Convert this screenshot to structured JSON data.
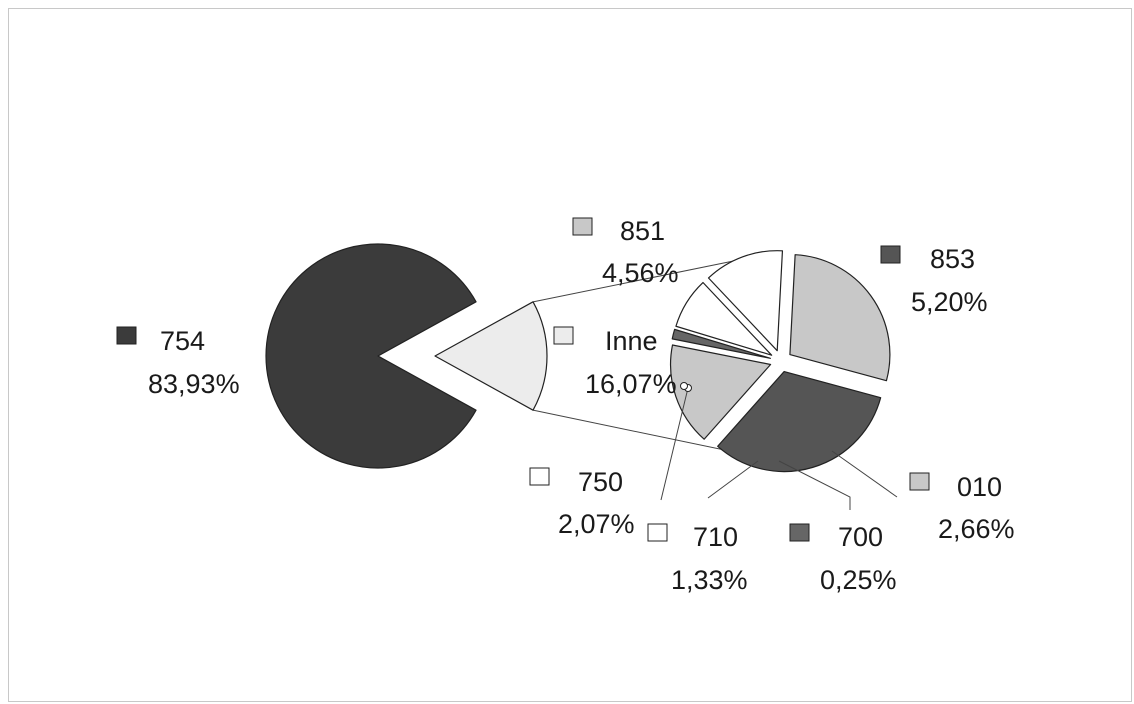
{
  "chart_data": {
    "type": "pie",
    "subtype": "pie-of-pie",
    "main_pie": [
      {
        "label": "754",
        "value": 83.93,
        "percent_text": "83,93%",
        "color": "#3b3b3b"
      },
      {
        "label": "Inne",
        "value": 16.07,
        "percent_text": "16,07%",
        "color": "#ececec"
      }
    ],
    "secondary_pie": [
      {
        "label": "851",
        "value": 4.56,
        "percent_text": "4,56%",
        "color": "#c8c8c8"
      },
      {
        "label": "853",
        "value": 5.2,
        "percent_text": "5,20%",
        "color": "#555555"
      },
      {
        "label": "010",
        "value": 2.66,
        "percent_text": "2,66%",
        "color": "#c8c8c8"
      },
      {
        "label": "700",
        "value": 0.25,
        "percent_text": "0,25%",
        "color": "#666666"
      },
      {
        "label": "710",
        "value": 1.33,
        "percent_text": "1,33%",
        "color": "#ffffff"
      },
      {
        "label": "750",
        "value": 2.07,
        "percent_text": "2,07%",
        "color": "#ffffff"
      }
    ]
  }
}
